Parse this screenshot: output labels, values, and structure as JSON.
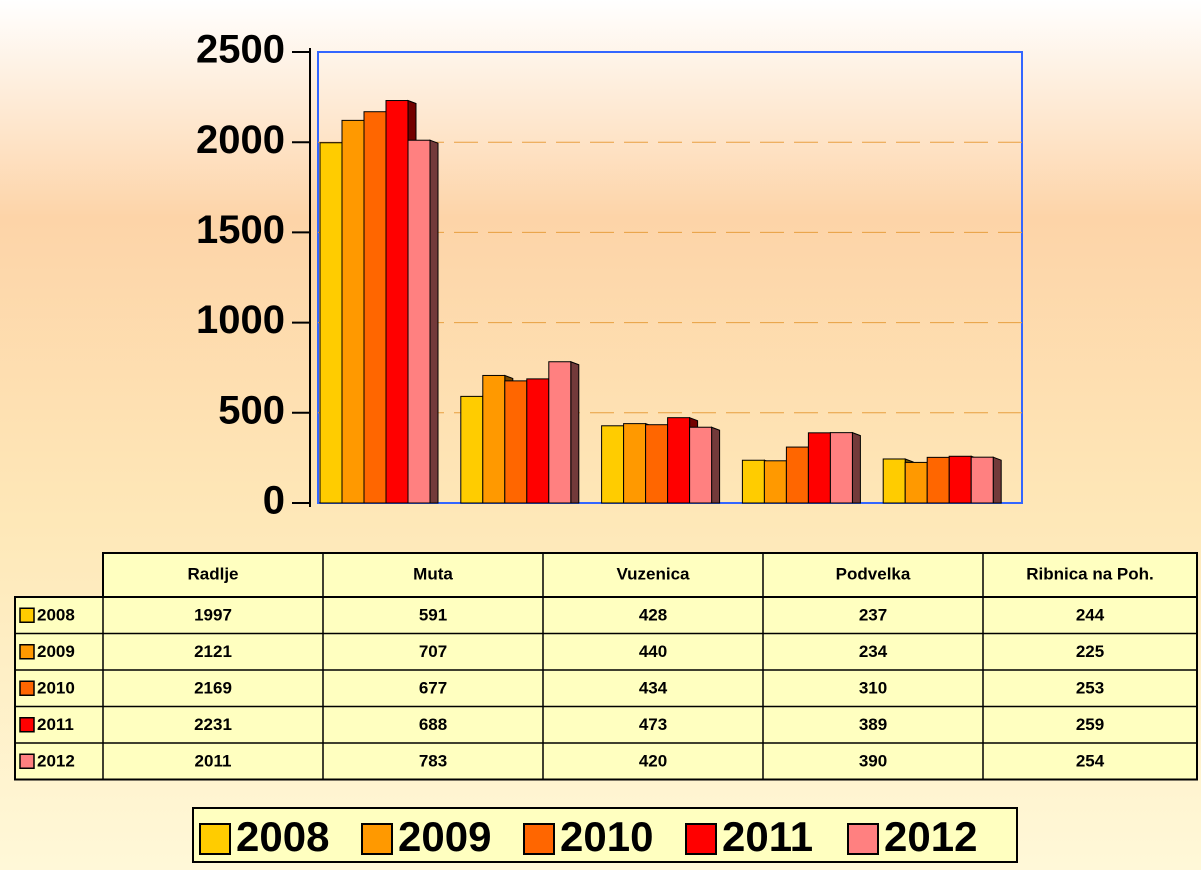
{
  "chart_data": {
    "type": "bar",
    "categories": [
      "Radlje",
      "Muta",
      "Vuzenica",
      "Podvelka",
      "Ribnica na Poh."
    ],
    "series": [
      {
        "name": "2008",
        "color": "#FFCC00",
        "values": [
          1997,
          591,
          428,
          237,
          244
        ]
      },
      {
        "name": "2009",
        "color": "#FF9900",
        "values": [
          2121,
          707,
          440,
          234,
          225
        ]
      },
      {
        "name": "2010",
        "color": "#FF6600",
        "values": [
          2169,
          677,
          434,
          310,
          253
        ]
      },
      {
        "name": "2011",
        "color": "#FF0000",
        "values": [
          2231,
          688,
          473,
          389,
          259
        ]
      },
      {
        "name": "2012",
        "color": "#FF8080",
        "values": [
          2011,
          783,
          420,
          390,
          254
        ]
      }
    ],
    "ylim": [
      0,
      2500
    ],
    "yticks": [
      0,
      500,
      1000,
      1500,
      2000,
      2500
    ],
    "grid": true
  }
}
